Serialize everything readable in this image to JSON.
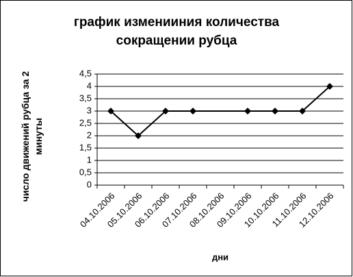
{
  "chart_data": {
    "type": "line",
    "title_lines": [
      "график изменииния количества",
      "сокращении рубца"
    ],
    "y_label": "число движений рубца за 2 минуты",
    "x_label": "дни",
    "categories": [
      "04.10.2006",
      "05.10.2006",
      "06.10.2006",
      "07.10.2006",
      "08.10.2006",
      "09.10.2006",
      "10.10.2006",
      "11.10.2006",
      "12.10.2006"
    ],
    "values": [
      3,
      2,
      3,
      3,
      null,
      3,
      3,
      3,
      4
    ],
    "color": "#000000",
    "connect_gaps": true,
    "ylim": [
      0,
      4.5
    ],
    "yticks": [
      0,
      {
        "value": 0.5,
        "label": "0,5"
      },
      1,
      {
        "value": 1.5,
        "label": "1,5"
      },
      2,
      {
        "value": 2.5,
        "label": "2,5"
      },
      3,
      {
        "value": 3.5,
        "label": "3,5"
      },
      4,
      {
        "value": 4.5,
        "label": "4,5"
      }
    ],
    "grid": true
  }
}
